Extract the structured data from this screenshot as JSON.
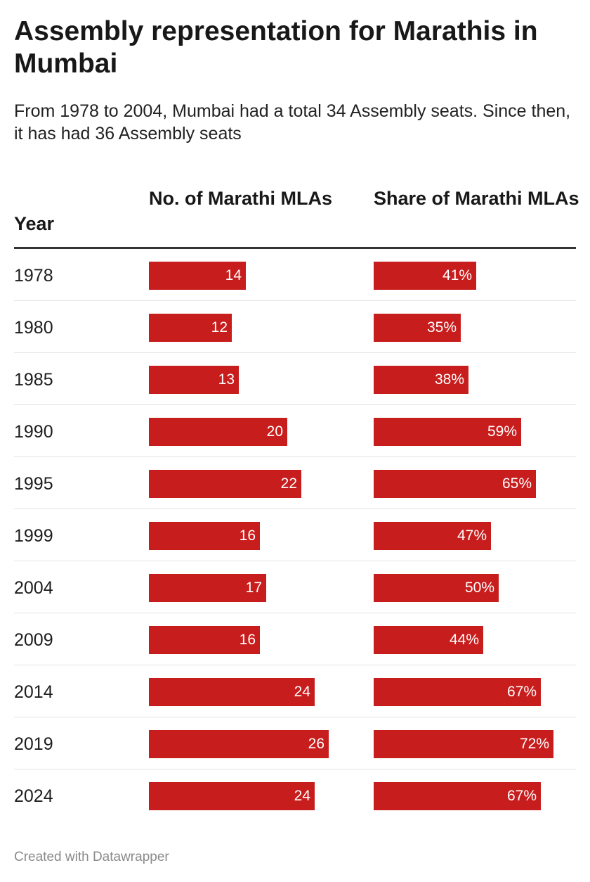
{
  "title": "Assembly representation for Marathis in Mumbai",
  "subtitle": "From 1978 to 2004, Mumbai had a total 34 Assembly seats. Since then, it has had 36 Assembly seats",
  "footer": "Created with Datawrapper",
  "colors": {
    "bar": "#c81d1d",
    "bar_text": "#ffffff"
  },
  "chart_data": {
    "type": "table",
    "columns": [
      "Year",
      "No. of Marathi MLAs",
      "Share of Marathi MLAs"
    ],
    "rows": [
      {
        "year": "1978",
        "count": 14,
        "count_label": "14",
        "share": 41,
        "share_label": "41%"
      },
      {
        "year": "1980",
        "count": 12,
        "count_label": "12",
        "share": 35,
        "share_label": "35%"
      },
      {
        "year": "1985",
        "count": 13,
        "count_label": "13",
        "share": 38,
        "share_label": "38%"
      },
      {
        "year": "1990",
        "count": 20,
        "count_label": "20",
        "share": 59,
        "share_label": "59%"
      },
      {
        "year": "1995",
        "count": 22,
        "count_label": "22",
        "share": 65,
        "share_label": "65%"
      },
      {
        "year": "1999",
        "count": 16,
        "count_label": "16",
        "share": 47,
        "share_label": "47%"
      },
      {
        "year": "2004",
        "count": 17,
        "count_label": "17",
        "share": 50,
        "share_label": "50%"
      },
      {
        "year": "2009",
        "count": 16,
        "count_label": "16",
        "share": 44,
        "share_label": "44%"
      },
      {
        "year": "2014",
        "count": 24,
        "count_label": "24",
        "share": 67,
        "share_label": "67%"
      },
      {
        "year": "2019",
        "count": 26,
        "count_label": "26",
        "share": 72,
        "share_label": "72%"
      },
      {
        "year": "2024",
        "count": 24,
        "count_label": "24",
        "share": 67,
        "share_label": "67%"
      }
    ],
    "count_max": 26,
    "share_max": 72
  }
}
